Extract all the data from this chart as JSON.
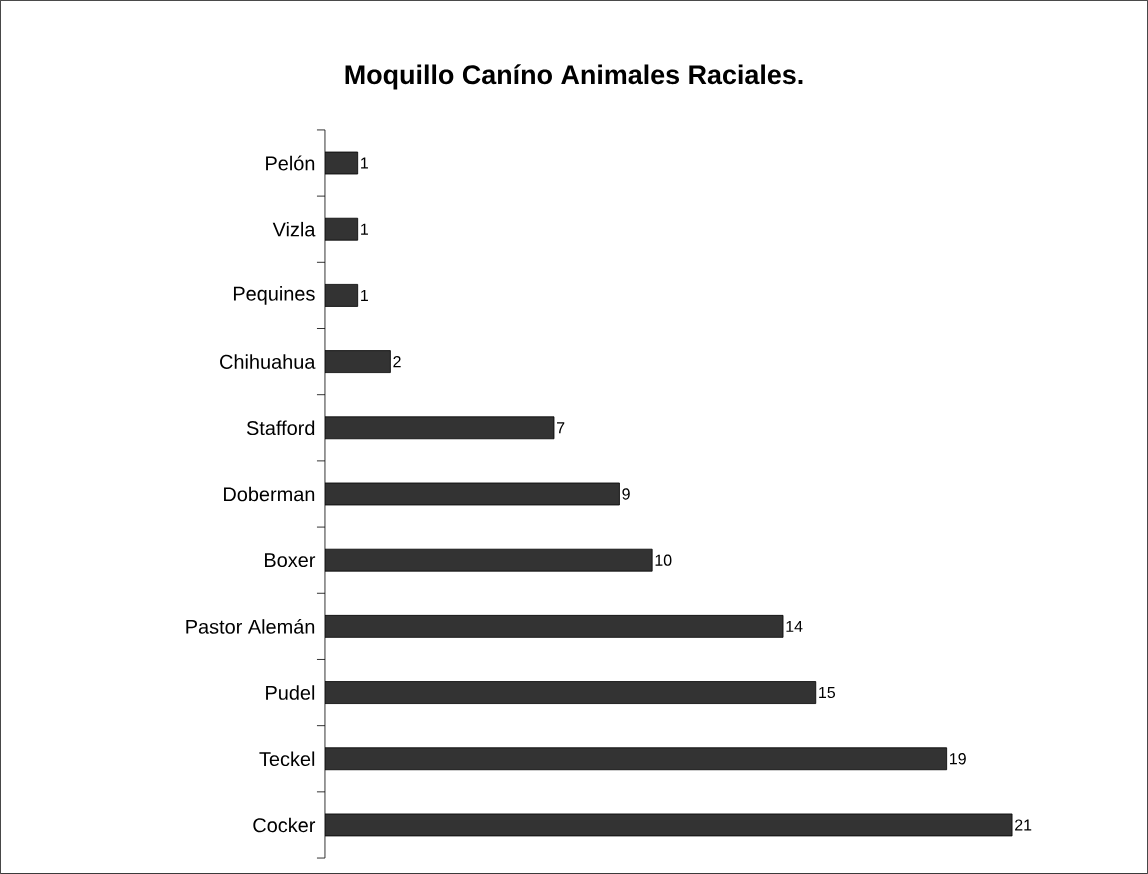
{
  "chart_data": {
    "type": "bar",
    "orientation": "horizontal",
    "title": "Moquillo Caníno Animales Raciales.",
    "categories": [
      "Pelón",
      "Vizla",
      "Pequines",
      "Chihuahua",
      "Stafford",
      "Doberman",
      "Boxer",
      "Pastor Alemán",
      "Pudel",
      "Teckel",
      "Cocker"
    ],
    "values": [
      1,
      1,
      1,
      2,
      7,
      9,
      10,
      14,
      15,
      19,
      21
    ],
    "color": "#333333",
    "data_labels": true,
    "tick_labels": "y"
  }
}
